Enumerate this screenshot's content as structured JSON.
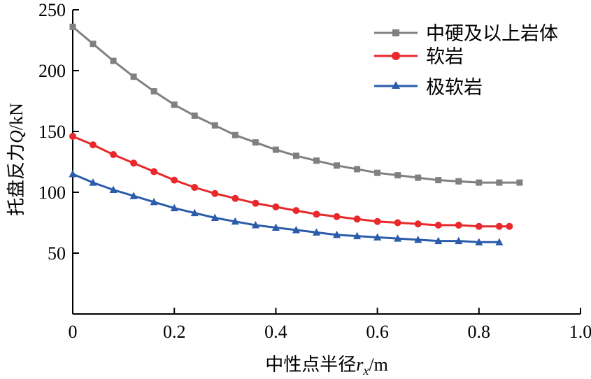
{
  "chart_data": {
    "type": "line",
    "xlabel_prefix": "中性点半径",
    "xlabel_var": "r",
    "xlabel_sub": "x",
    "xlabel_unit": "/m",
    "ylabel_prefix": "托盘反力",
    "ylabel_var": "Q",
    "ylabel_unit": "/kN",
    "xlim": [
      0,
      1.0
    ],
    "ylim": [
      0,
      250
    ],
    "xticks": [
      "0",
      "0.2",
      "0.4",
      "0.6",
      "0.8",
      "1.0"
    ],
    "yticks": [
      "50",
      "100",
      "150",
      "200",
      "250"
    ],
    "grid": false,
    "legend_position": "top-right",
    "series": [
      {
        "name": "中硬及以上岩体",
        "color": "#808080",
        "marker": "square",
        "x": [
          0.0,
          0.04,
          0.08,
          0.12,
          0.16,
          0.2,
          0.24,
          0.28,
          0.32,
          0.36,
          0.4,
          0.44,
          0.48,
          0.52,
          0.56,
          0.6,
          0.64,
          0.68,
          0.72,
          0.76,
          0.8,
          0.84,
          0.88
        ],
        "y": [
          236,
          222,
          208,
          195,
          183,
          172,
          163,
          155,
          147,
          141,
          135,
          130,
          126,
          122,
          119,
          116,
          114,
          112,
          110,
          109,
          108,
          108,
          108
        ]
      },
      {
        "name": "软岩",
        "color": "#e8282b",
        "marker": "circle",
        "x": [
          0.0,
          0.04,
          0.08,
          0.12,
          0.16,
          0.2,
          0.24,
          0.28,
          0.32,
          0.36,
          0.4,
          0.44,
          0.48,
          0.52,
          0.56,
          0.6,
          0.64,
          0.68,
          0.72,
          0.76,
          0.8,
          0.84,
          0.86
        ],
        "y": [
          146,
          139,
          131,
          124,
          117,
          110,
          104,
          99,
          95,
          91,
          88,
          85,
          82,
          80,
          78,
          76,
          75,
          74,
          73,
          73,
          72,
          72,
          72
        ]
      },
      {
        "name": "极软岩",
        "color": "#2a5caa",
        "marker": "triangle",
        "x": [
          0.0,
          0.04,
          0.08,
          0.12,
          0.16,
          0.2,
          0.24,
          0.28,
          0.32,
          0.36,
          0.4,
          0.44,
          0.48,
          0.52,
          0.56,
          0.6,
          0.64,
          0.68,
          0.72,
          0.76,
          0.8,
          0.84
        ],
        "y": [
          115,
          108,
          102,
          97,
          92,
          87,
          83,
          79,
          76,
          73,
          71,
          69,
          67,
          65,
          64,
          63,
          62,
          61,
          60,
          60,
          59,
          59
        ]
      }
    ]
  }
}
